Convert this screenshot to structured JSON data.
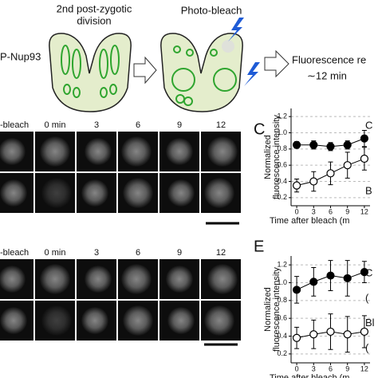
{
  "diagram": {
    "stage_label": [
      "2nd post-zygotic",
      "division"
    ],
    "bleach_label": "Photo-bleach",
    "construct_label": "P-Nup93",
    "result_label": [
      "Fluorescence re",
      "∼12 min"
    ]
  },
  "image_panels": [
    {
      "column_labels": [
        "e-bleach",
        "0 min",
        "3",
        "6",
        "9",
        "12"
      ]
    },
    {
      "column_labels": [
        "o-bleach",
        "0 min",
        "3",
        "6",
        "9",
        "12"
      ]
    }
  ],
  "chart_data": [
    {
      "type": "line",
      "panel_label": "C",
      "ylabel": [
        "Normalized",
        "fluorescence intensity"
      ],
      "xlabel": "Time after bleach (m",
      "annotations": [
        "C",
        "B"
      ],
      "x": [
        0,
        3,
        6,
        9,
        12
      ],
      "series": [
        {
          "color": "#000000",
          "marker_fill": "#000000",
          "values": [
            0.85,
            0.85,
            0.83,
            0.85,
            0.93
          ],
          "errors": [
            0.04,
            0.05,
            0.05,
            0.05,
            0.1
          ]
        },
        {
          "color": "#000000",
          "marker_fill": "#ffffff",
          "values": [
            0.35,
            0.4,
            0.5,
            0.6,
            0.68
          ],
          "errors": [
            0.08,
            0.12,
            0.14,
            0.16,
            0.14
          ]
        }
      ],
      "xlim": [
        -1,
        13
      ],
      "ylim": [
        0.1,
        1.3
      ],
      "xticks": [
        0,
        3,
        6,
        9,
        12
      ],
      "yticks": [
        0.2,
        0.4,
        0.6,
        0.8,
        {
          "value": 1,
          "label": "1.0"
        },
        1.2
      ],
      "grid": true
    },
    {
      "type": "line",
      "panel_label": "E",
      "ylabel": [
        "Normalized",
        "fluorescence intensity"
      ],
      "xlabel": "Time after bleach (m",
      "annotations": [
        "C",
        "(",
        "Bl",
        "("
      ],
      "x": [
        0,
        3,
        6,
        9,
        12
      ],
      "series": [
        {
          "color": "#000000",
          "marker_fill": "#000000",
          "values": [
            0.92,
            1.01,
            1.08,
            1.05,
            1.12
          ],
          "errors": [
            0.15,
            0.16,
            0.17,
            0.2,
            0.12
          ]
        },
        {
          "color": "#000000",
          "marker_fill": "#ffffff",
          "values": [
            0.38,
            0.42,
            0.45,
            0.42,
            0.45
          ],
          "errors": [
            0.12,
            0.16,
            0.2,
            0.2,
            0.18
          ]
        }
      ],
      "xlim": [
        -1,
        13
      ],
      "ylim": [
        0.1,
        1.3
      ],
      "xticks": [
        0,
        3,
        6,
        9,
        12
      ],
      "yticks": [
        0.2,
        0.4,
        0.6,
        0.8,
        {
          "value": 1,
          "label": "1.0"
        },
        1.2
      ],
      "grid": true
    }
  ]
}
